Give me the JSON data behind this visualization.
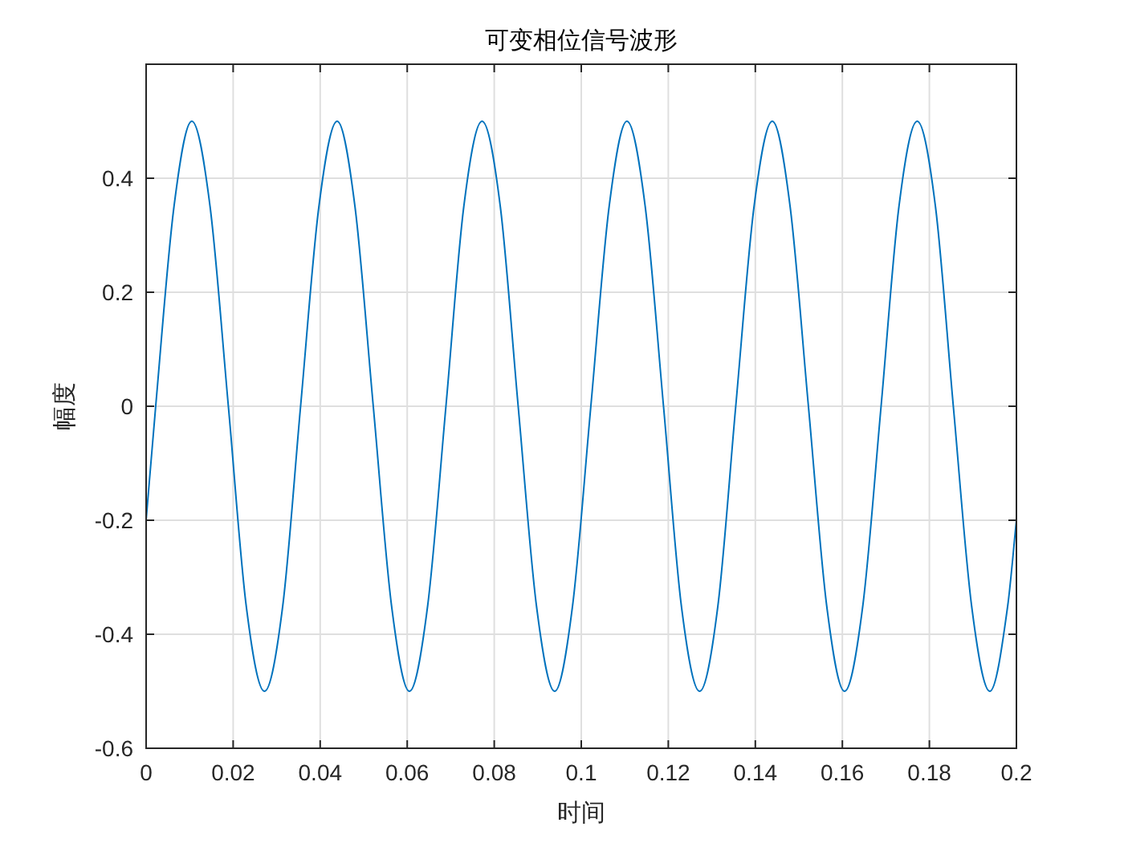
{
  "chart_data": {
    "type": "line",
    "title": "可变相位信号波形",
    "xlabel": "时间",
    "ylabel": "幅度",
    "x": [
      0,
      0.0022,
      0.0064,
      0.0105,
      0.0147,
      0.0189,
      0.023,
      0.0272,
      0.0314,
      0.0355,
      0.0397,
      0.0439,
      0.048,
      0.0522,
      0.0564,
      0.0605,
      0.0647,
      0.0689,
      0.073,
      0.0772,
      0.0814,
      0.0855,
      0.0897,
      0.0939,
      0.098,
      0.1022,
      0.1064,
      0.1105,
      0.1147,
      0.1189,
      0.123,
      0.1272,
      0.1314,
      0.1355,
      0.1397,
      0.1439,
      0.148,
      0.1522,
      0.1564,
      0.1605,
      0.1647,
      0.1689,
      0.173,
      0.1772,
      0.1814,
      0.1855,
      0.1897,
      0.1939,
      0.198,
      0.2
    ],
    "values": [
      -0.2,
      0,
      0.35,
      0.5,
      0.35,
      0,
      -0.35,
      -0.5,
      -0.35,
      0,
      0.35,
      0.5,
      0.35,
      0,
      -0.35,
      -0.5,
      -0.35,
      0,
      0.35,
      0.5,
      0.35,
      0,
      -0.35,
      -0.5,
      -0.35,
      0,
      0.35,
      0.5,
      0.35,
      0,
      -0.35,
      -0.5,
      -0.35,
      0,
      0.35,
      0.5,
      0.35,
      0,
      -0.35,
      -0.5,
      -0.35,
      0,
      0.35,
      0.5,
      0.35,
      0,
      -0.35,
      -0.5,
      -0.35,
      -0.2
    ],
    "color": "#0072bd",
    "xlim": [
      0,
      0.2
    ],
    "ylim": [
      -0.6,
      0.6
    ],
    "xticks": [
      0,
      0.02,
      0.04,
      0.06,
      0.08,
      0.1,
      0.12,
      0.14,
      0.16,
      0.18,
      0.2
    ],
    "yticks": [
      -0.6,
      -0.4,
      -0.2,
      0,
      0.2,
      0.4
    ],
    "grid": true
  }
}
